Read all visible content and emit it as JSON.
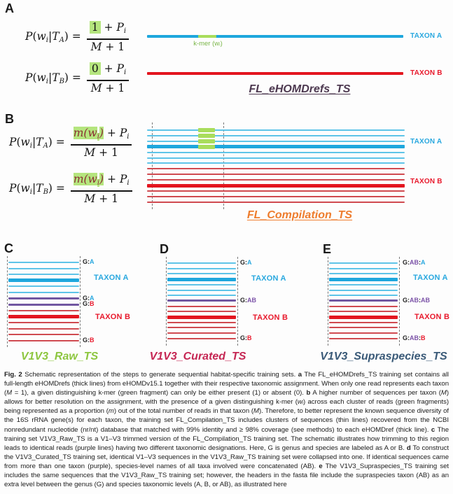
{
  "colors": {
    "ink": "#1a1a1a",
    "blue": "#1ea7dd",
    "blue-light": "#5ec4e8",
    "red": "#e3151f",
    "red-light": "#d04a50",
    "purple": "#7157a1",
    "purple-label": "#7b52a8",
    "green": "#a9dd5c",
    "green-bg": "#b5e57e",
    "green-text": "#7ab648",
    "maroon": "#8a3033",
    "taxon-a": "#29a8df",
    "taxon-b": "#e8192c",
    "title-a": "#4d3950",
    "title-b": "#ee7d2e",
    "title-c": "#8dc63f",
    "title-d": "#c52653",
    "title-e": "#3a5a78"
  },
  "panelA": {
    "letter": "A",
    "taxon_a": "TAXON A",
    "taxon_b": "TAXON B",
    "kmer_label": "k-mer (wᵢ)",
    "title": "FL_eHOMDrefs_TS"
  },
  "panelB": {
    "letter": "B",
    "taxon_a": "TAXON A",
    "taxon_b": "TAXON B",
    "title": "FL_Compilation_TS"
  },
  "panelC": {
    "letter": "C",
    "taxon_a": "TAXON A",
    "taxon_b": "TAXON B",
    "title": "V1V3_Raw_TS"
  },
  "panelD": {
    "letter": "D",
    "taxon_a": "TAXON A",
    "taxon_b": "TAXON B",
    "title": "V1V3_Curated_TS"
  },
  "panelE": {
    "letter": "E",
    "taxon_a": "TAXON A",
    "taxon_b": "TAXON B",
    "title": "V1V3_Supraspecies_TS"
  },
  "formulas": [
    {
      "lhs": [
        [
          "i",
          "P"
        ],
        [
          "t",
          "("
        ],
        [
          "i",
          "w"
        ],
        [
          "s",
          "i"
        ],
        [
          "t",
          "|"
        ],
        [
          "i",
          "T"
        ],
        [
          "s",
          "A"
        ],
        [
          "t",
          ") = "
        ]
      ],
      "num": [
        [
          "h",
          "1"
        ],
        [
          "t",
          " + "
        ],
        [
          "i",
          "P"
        ],
        [
          "s",
          "i"
        ]
      ],
      "den": [
        [
          "i",
          "M"
        ],
        [
          "t",
          " + 1"
        ]
      ]
    },
    {
      "lhs": [
        [
          "i",
          "P"
        ],
        [
          "t",
          "("
        ],
        [
          "i",
          "w"
        ],
        [
          "s",
          "i"
        ],
        [
          "t",
          "|"
        ],
        [
          "i",
          "T"
        ],
        [
          "s",
          "B"
        ],
        [
          "t",
          ") = "
        ]
      ],
      "num": [
        [
          "h",
          "0"
        ],
        [
          "t",
          " + "
        ],
        [
          "i",
          "P"
        ],
        [
          "s",
          "i"
        ]
      ],
      "den": [
        [
          "i",
          "M"
        ],
        [
          "t",
          " + 1"
        ]
      ]
    },
    {
      "lhs": [
        [
          "i",
          "P"
        ],
        [
          "t",
          "("
        ],
        [
          "i",
          "w"
        ],
        [
          "s",
          "i"
        ],
        [
          "t",
          "|"
        ],
        [
          "i",
          "T"
        ],
        [
          "s",
          "A"
        ],
        [
          "t",
          ") = "
        ]
      ],
      "num": [
        [
          "hi",
          "m(w"
        ],
        [
          "his",
          "i"
        ],
        [
          "hi",
          ")"
        ],
        [
          "t",
          " + "
        ],
        [
          "i",
          "P"
        ],
        [
          "s",
          "i"
        ]
      ],
      "den": [
        [
          "i",
          "M"
        ],
        [
          "t",
          " + 1"
        ]
      ]
    },
    {
      "lhs": [
        [
          "i",
          "P"
        ],
        [
          "t",
          "("
        ],
        [
          "i",
          "w"
        ],
        [
          "s",
          "i"
        ],
        [
          "t",
          "|"
        ],
        [
          "i",
          "T"
        ],
        [
          "s",
          "B"
        ],
        [
          "t",
          ") = "
        ]
      ],
      "num": [
        [
          "hi",
          "m(w"
        ],
        [
          "his",
          "i"
        ],
        [
          "hi",
          ")"
        ],
        [
          "t",
          " + "
        ],
        [
          "i",
          "P"
        ],
        [
          "s",
          "i"
        ]
      ],
      "den": [
        [
          "i",
          "M"
        ],
        [
          "t",
          " + 1"
        ]
      ]
    }
  ],
  "diagrams": {
    "B": {
      "rows": [
        {
          "c": "bt",
          "g": 1
        },
        {
          "c": "bt",
          "g": 1
        },
        {
          "c": "bt",
          "g": 1
        },
        {
          "c": "bT",
          "g": 1
        },
        {
          "c": "bt"
        },
        {
          "c": "bt"
        },
        {
          "c": "bt"
        },
        {
          "c": "rt"
        },
        {
          "c": "rt"
        },
        {
          "c": "rt"
        },
        {
          "c": "rT"
        },
        {
          "c": "rt"
        },
        {
          "c": "rt"
        },
        {
          "c": "rt"
        }
      ],
      "labels": []
    },
    "C": {
      "rows": [
        {
          "c": "bt"
        },
        {
          "c": "bt"
        },
        {
          "c": "bt"
        },
        {
          "c": "bT"
        },
        {
          "c": "bt"
        },
        {
          "c": "bt"
        },
        {
          "c": "pu"
        },
        {
          "c": "pu"
        },
        {
          "c": "rt"
        },
        {
          "c": "rT"
        },
        {
          "c": "rt"
        },
        {
          "c": "rt"
        },
        {
          "c": "rt"
        },
        {
          "c": "rt"
        }
      ],
      "labels": [
        {
          "row": 0,
          "segs": [
            [
              "G",
              "k"
            ],
            [
              ":",
              "k"
            ],
            [
              "A",
              "a"
            ]
          ]
        },
        {
          "row": 6,
          "segs": [
            [
              "G",
              "k"
            ],
            [
              ":",
              "k"
            ],
            [
              "A",
              "a"
            ]
          ]
        },
        {
          "row": 7,
          "segs": [
            [
              "G",
              "k"
            ],
            [
              ":",
              "k"
            ],
            [
              "B",
              "b"
            ]
          ]
        },
        {
          "row": 13,
          "segs": [
            [
              "G",
              "k"
            ],
            [
              ":",
              "k"
            ],
            [
              "B",
              "b"
            ]
          ]
        }
      ]
    },
    "D": {
      "rows": [
        {
          "c": "bt"
        },
        {
          "c": "bt"
        },
        {
          "c": "bt"
        },
        {
          "c": "bT"
        },
        {
          "c": "bt"
        },
        {
          "c": "bt"
        },
        {
          "c": "bt"
        },
        {
          "c": "pu"
        },
        {
          "c": "rt"
        },
        {
          "c": "rt"
        },
        {
          "c": "rT"
        },
        {
          "c": "rt"
        },
        {
          "c": "rt"
        },
        {
          "c": "rt"
        },
        {
          "c": "rt"
        }
      ],
      "labels": [
        {
          "row": 0,
          "segs": [
            [
              "G",
              "k"
            ],
            [
              ":",
              "k"
            ],
            [
              "A",
              "a"
            ]
          ]
        },
        {
          "row": 7,
          "segs": [
            [
              "G",
              "k"
            ],
            [
              ":",
              "k"
            ],
            [
              "AB",
              "p"
            ]
          ]
        },
        {
          "row": 14,
          "segs": [
            [
              "G",
              "k"
            ],
            [
              ":",
              "k"
            ],
            [
              "B",
              "b"
            ]
          ]
        }
      ]
    },
    "E": {
      "rows": [
        {
          "c": "bt"
        },
        {
          "c": "bt"
        },
        {
          "c": "bt"
        },
        {
          "c": "bT"
        },
        {
          "c": "bt"
        },
        {
          "c": "bt"
        },
        {
          "c": "bt"
        },
        {
          "c": "pu"
        },
        {
          "c": "rt"
        },
        {
          "c": "rt"
        },
        {
          "c": "rT"
        },
        {
          "c": "rt"
        },
        {
          "c": "rt"
        },
        {
          "c": "rt"
        },
        {
          "c": "rt"
        }
      ],
      "labels": [
        {
          "row": 0,
          "segs": [
            [
              "G",
              "k"
            ],
            [
              ":",
              "k"
            ],
            [
              "AB",
              "p"
            ],
            [
              ":",
              "k"
            ],
            [
              "A",
              "a"
            ]
          ]
        },
        {
          "row": 7,
          "segs": [
            [
              "G",
              "k"
            ],
            [
              ":",
              "k"
            ],
            [
              "AB",
              "p"
            ],
            [
              ":",
              "k"
            ],
            [
              "AB",
              "p"
            ]
          ]
        },
        {
          "row": 14,
          "segs": [
            [
              "G",
              "k"
            ],
            [
              ":",
              "k"
            ],
            [
              "AB",
              "p"
            ],
            [
              ":",
              "k"
            ],
            [
              "B",
              "b"
            ]
          ]
        }
      ]
    }
  },
  "caption": {
    "segments": [
      {
        "b": 1,
        "v": "Fig. 2"
      },
      {
        "v": " Schematic representation of the steps to generate sequential habitat-specific training sets. "
      },
      {
        "b": 1,
        "v": "a"
      },
      {
        "v": " The FL_eHOMDrefs_TS training set contains all full-length eHOMDrefs (thick lines) from eHOMDv15.1 together with their respective taxonomic assignment. When only one read represents each taxon ("
      },
      {
        "i": 1,
        "v": "M"
      },
      {
        "v": " = 1), a given distinguishing k-mer (green fragment) can only be either present (1) or absent (0). "
      },
      {
        "b": 1,
        "v": "b"
      },
      {
        "v": " A higher number of sequences per taxon ("
      },
      {
        "i": 1,
        "v": "M"
      },
      {
        "v": ") allows for better resolution on the assignment, with the presence of a given distinguishing k-mer ("
      },
      {
        "i": 1,
        "v": "wᵢ"
      },
      {
        "v": ") across each cluster of reads (green fragments) being represented as a proportion ("
      },
      {
        "i": 1,
        "v": "m"
      },
      {
        "v": ") out of the total number of reads in that taxon ("
      },
      {
        "i": 1,
        "v": "M"
      },
      {
        "v": "). Therefore, to better represent the known sequence diversity of the 16S rRNA gene(s) for each taxon, the training set FL_Compilation_TS includes clusters of sequences (thin lines) recovered from the NCBI nonredundant nucleotide (nr/nt) database that matched with 99% identity and ≥ 98% coverage (see methods) to each eHOMDref (thick line). "
      },
      {
        "b": 1,
        "v": "c"
      },
      {
        "v": " The training set V1V3_Raw_TS is a V1–V3 trimmed version of the FL_Compilation_TS training set. The schematic illustrates how trimming to this region leads to identical reads (purple lines) having two different taxonomic designations. Here, G is genus and species are labeled as A or B. "
      },
      {
        "b": 1,
        "v": "d"
      },
      {
        "v": " To construct the V1V3_Curated_TS training set, identical V1–V3 sequences in the V1V3_Raw_TS training set were collapsed into one. If identical sequences came from more than one taxon (purple), species-level names of all taxa involved were concatenated (AB). "
      },
      {
        "b": 1,
        "v": "e"
      },
      {
        "v": " The V1V3_Supraspecies_TS training set includes the same sequences that the V1V3_Raw_TS training set; however, the headers in the fasta file include the supraspecies taxon (AB) as an extra level between the genus (G) and species taxonomic levels (A, B, or AB), as illustrated here"
      }
    ]
  }
}
